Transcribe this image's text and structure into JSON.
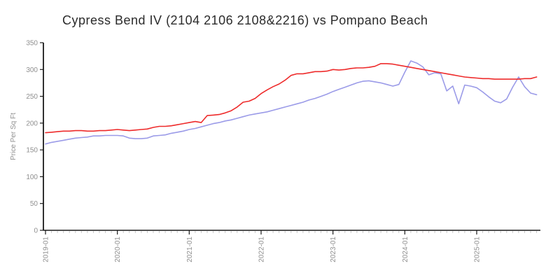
{
  "chart_data": {
    "type": "line",
    "title": "Cypress Bend IV (2104 2106 2108&2216) vs Pompano Beach",
    "ylabel": "Price Per Sq Ft",
    "xlabel": "",
    "ylim": [
      0,
      350
    ],
    "y_ticks": [
      0,
      50,
      100,
      150,
      200,
      250,
      300,
      350
    ],
    "x_start": "2019-01",
    "x_end": "2025-11",
    "x_frequency": "monthly",
    "x_tick_labels": [
      "2019-01",
      "2020-01",
      "2021-01",
      "2022-01",
      "2023-01",
      "2024-01",
      "2025-01"
    ],
    "grid": false,
    "legend_position": "none",
    "series": [
      {
        "name": "Cypress Bend IV (2104 2106 2108&2216)",
        "color": "#ee2b2b",
        "values": [
          182,
          183,
          184,
          185,
          185,
          186,
          186,
          185,
          185,
          186,
          186,
          187,
          188,
          187,
          186,
          187,
          188,
          189,
          192,
          194,
          194,
          195,
          197,
          199,
          201,
          203,
          201,
          214,
          215,
          216,
          219,
          223,
          230,
          239,
          241,
          246,
          255,
          262,
          268,
          273,
          280,
          289,
          292,
          292,
          294,
          296,
          296,
          297,
          300,
          299,
          300,
          302,
          303,
          303,
          304,
          306,
          311,
          311,
          310,
          308,
          306,
          304,
          302,
          300,
          298,
          296,
          294,
          292,
          290,
          288,
          286,
          285,
          284,
          283,
          283,
          282,
          282,
          282,
          282,
          282,
          283,
          283,
          286
        ]
      },
      {
        "name": "Pompano Beach",
        "color": "#9b9be8",
        "values": [
          161,
          164,
          166,
          168,
          170,
          172,
          173,
          174,
          176,
          176,
          177,
          177,
          177,
          176,
          172,
          171,
          171,
          172,
          176,
          177,
          178,
          181,
          183,
          185,
          188,
          190,
          193,
          196,
          199,
          201,
          204,
          206,
          209,
          212,
          215,
          217,
          219,
          221,
          224,
          227,
          230,
          233,
          236,
          239,
          243,
          246,
          250,
          254,
          259,
          263,
          267,
          271,
          275,
          278,
          279,
          277,
          275,
          272,
          269,
          272,
          295,
          316,
          312,
          305,
          290,
          294,
          292,
          260,
          269,
          236,
          271,
          269,
          266,
          258,
          249,
          241,
          238,
          245,
          267,
          286,
          268,
          256,
          253
        ]
      }
    ]
  },
  "axis_style": {
    "axis_color": "#1a1a1a",
    "tick_label_color": "#8f8f8f",
    "minor_tick_color": "#c8c8c8",
    "title_color": "#2b2b2b"
  }
}
